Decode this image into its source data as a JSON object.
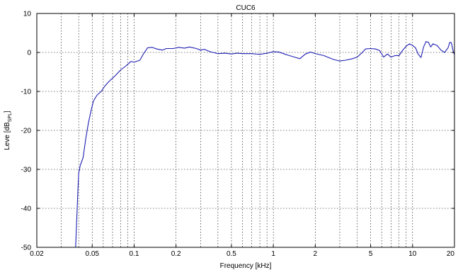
{
  "chart_data": {
    "type": "line",
    "title": "CUC6",
    "xlabel": "Frequency [kHz]",
    "ylabel_main": "Leve [dB",
    "ylabel_sub": "SPL",
    "ylabel_end": "]",
    "x_scale": "log",
    "xlim": [
      0.02,
      20
    ],
    "ylim": [
      -50,
      10
    ],
    "grid": true,
    "x_ticks": [
      {
        "v": 0.02,
        "label": "0.02"
      },
      {
        "v": 0.05,
        "label": "0.05"
      },
      {
        "v": 0.1,
        "label": "0.1"
      },
      {
        "v": 0.2,
        "label": "0.2"
      },
      {
        "v": 0.5,
        "label": "0.5"
      },
      {
        "v": 1,
        "label": "1"
      },
      {
        "v": 2,
        "label": "2"
      },
      {
        "v": 5,
        "label": "5"
      },
      {
        "v": 10,
        "label": "10"
      },
      {
        "v": 20,
        "label": "20"
      }
    ],
    "y_ticks": [
      {
        "v": 10,
        "label": "10"
      },
      {
        "v": 0,
        "label": "0"
      },
      {
        "v": -10,
        "label": "-10"
      },
      {
        "v": -20,
        "label": "-20"
      },
      {
        "v": -30,
        "label": "-30"
      },
      {
        "v": -40,
        "label": "-40"
      },
      {
        "v": -50,
        "label": "-50"
      }
    ],
    "x_minor_grid": [
      0.03,
      0.04,
      0.06,
      0.07,
      0.08,
      0.09,
      0.3,
      0.4,
      0.6,
      0.7,
      0.8,
      0.9,
      3,
      4,
      6,
      7,
      8,
      9
    ],
    "series": [
      {
        "color": "#1f1fb4",
        "points": [
          [
            0.038,
            -50
          ],
          [
            0.0385,
            -45
          ],
          [
            0.039,
            -40
          ],
          [
            0.0395,
            -35
          ],
          [
            0.04,
            -31
          ],
          [
            0.041,
            -29
          ],
          [
            0.043,
            -27
          ],
          [
            0.045,
            -22
          ],
          [
            0.047,
            -18
          ],
          [
            0.049,
            -15
          ],
          [
            0.051,
            -12.5
          ],
          [
            0.054,
            -11
          ],
          [
            0.058,
            -10
          ],
          [
            0.062,
            -8.5
          ],
          [
            0.067,
            -7.2
          ],
          [
            0.073,
            -6
          ],
          [
            0.08,
            -4.5
          ],
          [
            0.087,
            -3.5
          ],
          [
            0.095,
            -2.3
          ],
          [
            0.1,
            -2.5
          ],
          [
            0.11,
            -2.0
          ],
          [
            0.117,
            -0.3
          ],
          [
            0.125,
            1.2
          ],
          [
            0.135,
            1.3
          ],
          [
            0.145,
            0.9
          ],
          [
            0.16,
            0.6
          ],
          [
            0.17,
            1.0
          ],
          [
            0.19,
            1.0
          ],
          [
            0.21,
            1.3
          ],
          [
            0.23,
            1.1
          ],
          [
            0.25,
            1.4
          ],
          [
            0.28,
            1.0
          ],
          [
            0.3,
            0.6
          ],
          [
            0.32,
            0.8
          ],
          [
            0.35,
            0.2
          ],
          [
            0.4,
            -0.3
          ],
          [
            0.45,
            -0.2
          ],
          [
            0.5,
            -0.4
          ],
          [
            0.55,
            -0.2
          ],
          [
            0.6,
            -0.3
          ],
          [
            0.7,
            -0.3
          ],
          [
            0.8,
            -0.5
          ],
          [
            0.9,
            -0.2
          ],
          [
            1.0,
            0.2
          ],
          [
            1.1,
            0.1
          ],
          [
            1.2,
            -0.4
          ],
          [
            1.3,
            -0.8
          ],
          [
            1.45,
            -1.3
          ],
          [
            1.55,
            -1.6
          ],
          [
            1.7,
            -0.4
          ],
          [
            1.85,
            0.1
          ],
          [
            2.0,
            -0.3
          ],
          [
            2.3,
            -0.8
          ],
          [
            2.7,
            -1.8
          ],
          [
            3.0,
            -2.2
          ],
          [
            3.3,
            -2.0
          ],
          [
            3.7,
            -1.6
          ],
          [
            4.0,
            -1.2
          ],
          [
            4.3,
            -0.2
          ],
          [
            4.6,
            0.9
          ],
          [
            5.0,
            1.0
          ],
          [
            5.4,
            0.9
          ],
          [
            5.8,
            0.5
          ],
          [
            6.2,
            -1.2
          ],
          [
            6.6,
            -0.4
          ],
          [
            7.0,
            -1.2
          ],
          [
            7.5,
            -0.8
          ],
          [
            8.0,
            -0.8
          ],
          [
            8.5,
            0.6
          ],
          [
            9.0,
            1.6
          ],
          [
            9.5,
            2.2
          ],
          [
            10.0,
            1.8
          ],
          [
            10.5,
            1.2
          ],
          [
            11.0,
            -0.5
          ],
          [
            11.5,
            -1.3
          ],
          [
            12.0,
            1.4
          ],
          [
            12.5,
            2.8
          ],
          [
            13.0,
            2.6
          ],
          [
            13.5,
            1.4
          ],
          [
            14.0,
            2.2
          ],
          [
            15.0,
            1.8
          ],
          [
            16.0,
            0.6
          ],
          [
            17.0,
            0.0
          ],
          [
            18.0,
            1.2
          ],
          [
            18.5,
            2.6
          ],
          [
            19.0,
            2.5
          ],
          [
            19.5,
            0.6
          ],
          [
            20.0,
            -0.6
          ]
        ]
      }
    ]
  }
}
